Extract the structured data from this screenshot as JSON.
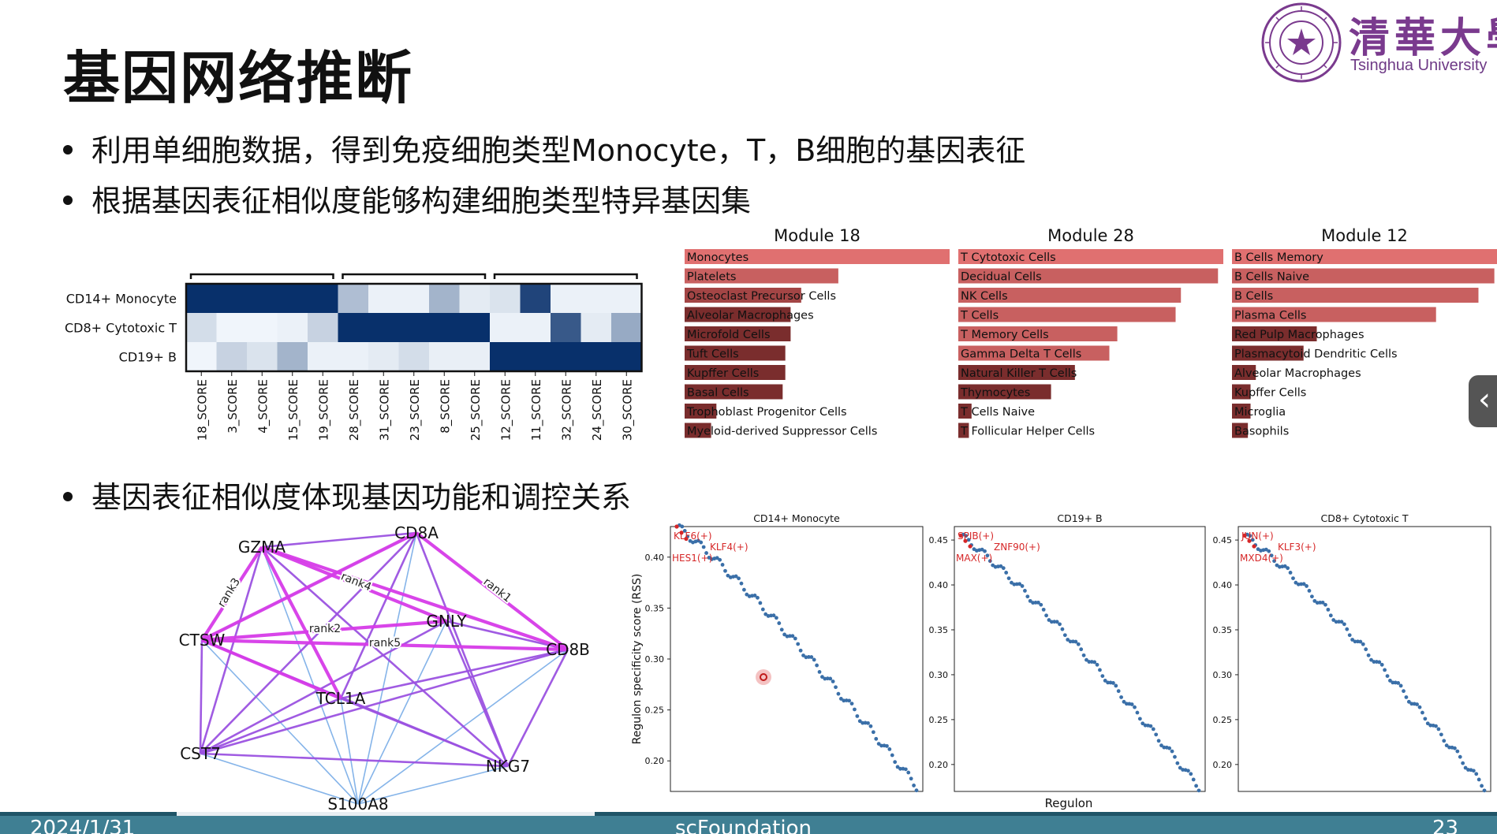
{
  "slide": {
    "title": "基因网络推断",
    "bullets": [
      "利用单细胞数据，得到免疫细胞类型Monocyte，T，B细胞的基因表征",
      "根据基因表征相似度能够构建细胞类型特异基因集",
      "基因表征相似度体现基因功能和调控关系"
    ],
    "logo": {
      "cn": "清華大學",
      "en": "Tsinghua University"
    },
    "side_tab_icon": "chevron-left-icon",
    "footer": {
      "date": "2024/1/31",
      "center": "scFoundation",
      "page": "23"
    }
  },
  "chart_data": [
    {
      "type": "heatmap",
      "rows": [
        "CD14+ Monocyte",
        "CD8+ Cytotoxic T",
        "CD19+ B"
      ],
      "columns": [
        "18_SCORE",
        "3_SCORE",
        "4_SCORE",
        "15_SCORE",
        "19_SCORE",
        "28_SCORE",
        "31_SCORE",
        "23_SCORE",
        "8_SCORE",
        "25_SCORE",
        "12_SCORE",
        "11_SCORE",
        "32_SCORE",
        "24_SCORE",
        "30_SCORE"
      ],
      "column_groups": [
        [
          0,
          4
        ],
        [
          5,
          9
        ],
        [
          10,
          14
        ]
      ],
      "values": [
        [
          1.0,
          1.0,
          1.0,
          1.0,
          1.0,
          0.3,
          0.05,
          0.05,
          0.35,
          0.08,
          0.12,
          0.9,
          0.05,
          0.05,
          0.05
        ],
        [
          0.15,
          0.03,
          0.03,
          0.05,
          0.2,
          1.0,
          1.0,
          1.0,
          1.0,
          1.0,
          0.05,
          0.05,
          0.8,
          0.08,
          0.4
        ],
        [
          0.03,
          0.2,
          0.12,
          0.35,
          0.05,
          0.05,
          0.08,
          0.15,
          0.06,
          0.06,
          1.0,
          1.0,
          1.0,
          1.0,
          1.0
        ]
      ],
      "colormap": [
        "#f7fbff",
        "#08306b"
      ]
    },
    {
      "type": "bar",
      "title": "Module 18",
      "categories": [
        "Monocytes",
        "Platelets",
        "Osteoclast Precursor Cells",
        "Alveolar Macrophages",
        "Microfold Cells",
        "Tuft Cells",
        "Kupffer Cells",
        "Basal Cells",
        "Trophoblast Progenitor Cells",
        "Myeloid-derived Suppressor Cells"
      ],
      "values": [
        1.0,
        0.58,
        0.44,
        0.4,
        0.4,
        0.38,
        0.38,
        0.37,
        0.12,
        0.1
      ],
      "colors": [
        "#e07070",
        "#a34545",
        "#7a2d2d"
      ]
    },
    {
      "type": "bar",
      "title": "Module 28",
      "categories": [
        "T Cytotoxic Cells",
        "Decidual Cells",
        "NK Cells",
        "T Cells",
        "T Memory Cells",
        "Gamma Delta T Cells",
        "Natural Killer T Cells",
        "Thymocytes",
        "T Cells Naive",
        "T Follicular Helper Cells"
      ],
      "values": [
        1.0,
        0.98,
        0.84,
        0.82,
        0.6,
        0.57,
        0.44,
        0.35,
        0.05,
        0.04
      ],
      "colors": [
        "#e07070",
        "#a34545",
        "#7a2d2d"
      ]
    },
    {
      "type": "bar",
      "title": "Module 12",
      "categories": [
        "B Cells Memory",
        "B Cells Naive",
        "B Cells",
        "Plasma Cells",
        "Red Pulp Macrophages",
        "Plasmacytoid Dendritic Cells",
        "Alveolar Macrophages",
        "Kupffer Cells",
        "Microglia",
        "Basophils"
      ],
      "values": [
        1.0,
        0.99,
        0.93,
        0.77,
        0.32,
        0.27,
        0.09,
        0.07,
        0.07,
        0.06
      ],
      "colors": [
        "#e07070",
        "#a34545",
        "#7a2d2d"
      ]
    },
    {
      "type": "network",
      "nodes": [
        "GZMA",
        "CD8A",
        "CTSW",
        "GNLY",
        "CD8B",
        "TCL1A",
        "CST7",
        "NKG7",
        "S100A8"
      ],
      "edge_labels": [
        "rank1",
        "rank2",
        "rank3",
        "rank4",
        "rank5"
      ],
      "colors": {
        "strong": "#d63be8",
        "medium": "#9b52e0",
        "weak": "#7eb0e8"
      }
    },
    {
      "type": "scatter",
      "ylabel": "Regulon specificity score (RSS)",
      "xlabel": "Regulon",
      "panels": [
        {
          "title": "CD14+ Monocyte",
          "yticks": [
            "0.40",
            "0.35",
            "0.30",
            "0.25",
            "0.20"
          ],
          "ylim": [
            0.17,
            0.43
          ],
          "y_start": 0.43,
          "y_end": 0.175,
          "labels": [
            "KLF6(+)",
            "KLF4(+)",
            "HES1(+)"
          ]
        },
        {
          "title": "CD19+ B",
          "yticks": [
            "0.45",
            "0.40",
            "0.35",
            "0.30",
            "0.25",
            "0.20"
          ],
          "ylim": [
            0.17,
            0.465
          ],
          "y_start": 0.455,
          "y_end": 0.175,
          "labels": [
            "SPIB(+)",
            "ZNF90(+)",
            "MAX(+)"
          ]
        },
        {
          "title": "CD8+ Cytotoxic T",
          "yticks": [
            "0.45",
            "0.40",
            "0.35",
            "0.30",
            "0.25",
            "0.20"
          ],
          "ylim": [
            0.17,
            0.465
          ],
          "y_start": 0.455,
          "y_end": 0.175,
          "labels": [
            "JUN(+)",
            "KLF3(+)",
            "MXD4(+)"
          ]
        }
      ],
      "colors": {
        "points": "#3a6fa8",
        "labels": "#d62728"
      }
    }
  ]
}
